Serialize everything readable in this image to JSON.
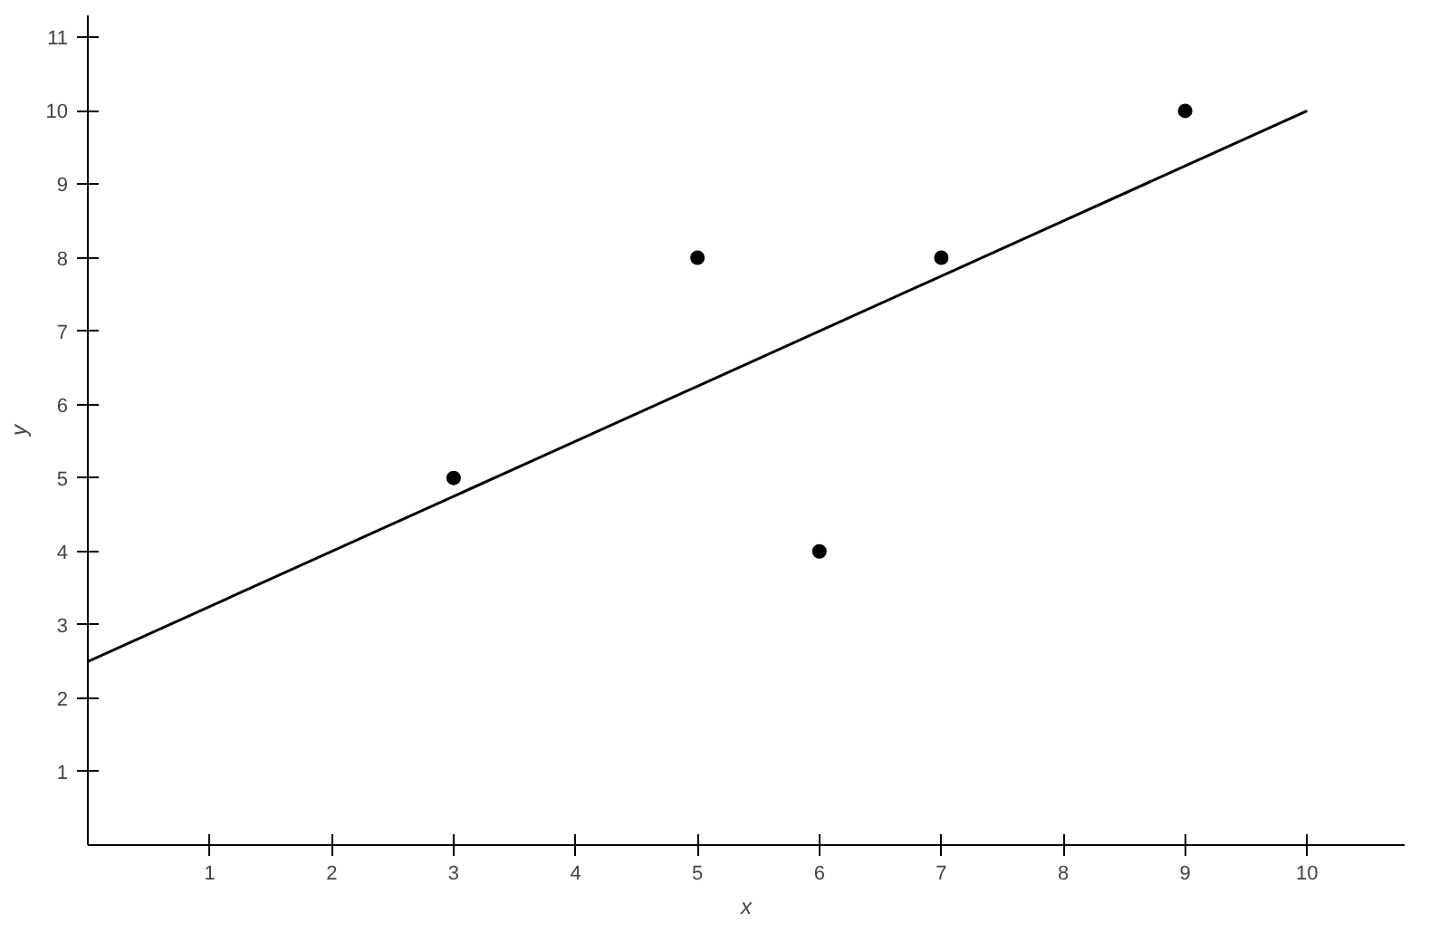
{
  "chart_data": {
    "type": "scatter",
    "xlabel": "x",
    "ylabel": "y",
    "xlim": [
      0,
      10.8
    ],
    "ylim": [
      0,
      11.3
    ],
    "xticks": [
      1,
      2,
      3,
      4,
      5,
      6,
      7,
      8,
      9,
      10
    ],
    "yticks": [
      1,
      2,
      3,
      4,
      5,
      6,
      7,
      8,
      9,
      10,
      11
    ],
    "marker": "circle",
    "grid": false,
    "series": [
      {
        "color": "#000000",
        "x": [
          3,
          5,
          6,
          7,
          9
        ],
        "values": [
          5,
          8,
          4,
          8,
          10
        ]
      },
      {
        "type": "line",
        "marker": "none",
        "color": "#000000",
        "x": [
          0,
          10
        ],
        "values": [
          2.5,
          10
        ]
      }
    ]
  }
}
